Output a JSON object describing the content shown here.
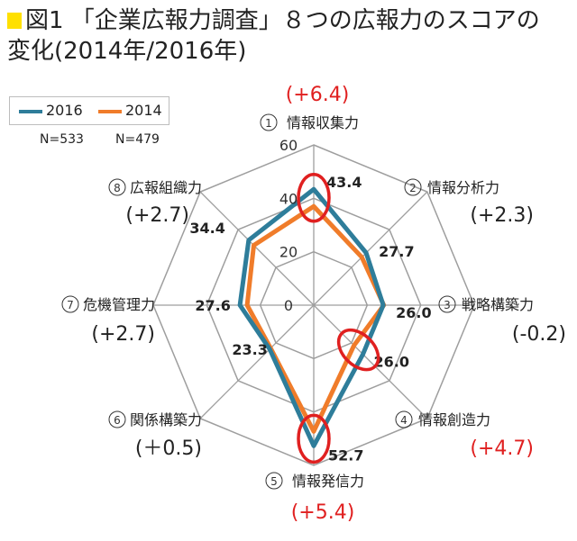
{
  "title": {
    "line1": "図1 「企業広報力調査」８つの広報力のスコアの",
    "line2": "変化(2014年/2016年)"
  },
  "legend": [
    {
      "name": "2016",
      "color": "#2e7d9a",
      "n": "N=533"
    },
    {
      "name": "2014",
      "color": "#f07c2a",
      "n": "N=479"
    }
  ],
  "chart_data": {
    "type": "radar",
    "scale_ticks": [
      0,
      20,
      40,
      60
    ],
    "rmax": 60,
    "axes": [
      {
        "num": "1",
        "label": "情報収集力",
        "change": "(+6.4)",
        "change_color": "red"
      },
      {
        "num": "2",
        "label": "情報分析力",
        "change": "(+2.3)",
        "change_color": "black"
      },
      {
        "num": "3",
        "label": "戦略構築力",
        "change": "(-0.2)",
        "change_color": "black"
      },
      {
        "num": "4",
        "label": "情報創造力",
        "change": "(+4.7)",
        "change_color": "red"
      },
      {
        "num": "5",
        "label": "情報発信力",
        "change": "(+5.4)",
        "change_color": "red"
      },
      {
        "num": "6",
        "label": "関係構築力",
        "change": "(＋0.5)",
        "change_color": "black"
      },
      {
        "num": "7",
        "label": "危機管理力",
        "change": "(+2.7)",
        "change_color": "black"
      },
      {
        "num": "8",
        "label": "広報組織力",
        "change": "(+2.7)",
        "change_color": "black"
      }
    ],
    "series": [
      {
        "name": "2016",
        "color": "#2e7d9a",
        "values": [
          43.4,
          27.7,
          26.0,
          26.0,
          52.7,
          23.3,
          27.6,
          34.4
        ]
      },
      {
        "name": "2014",
        "color": "#f07c2a",
        "values": [
          37.0,
          25.4,
          26.2,
          21.3,
          47.3,
          22.8,
          24.9,
          31.7
        ]
      }
    ],
    "value_labels": [
      "43.4",
      "27.7",
      "26.0",
      "26.0",
      "52.7",
      "23.3",
      "27.6",
      "34.4"
    ],
    "highlight_axes": [
      1,
      4,
      5
    ],
    "grid": true
  }
}
